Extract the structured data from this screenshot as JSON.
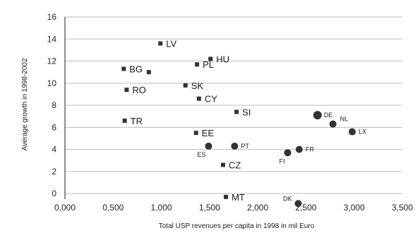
{
  "chart_data": {
    "type": "scatter",
    "xlabel": "Total USP revenues per capita in 1998 in mil Euro",
    "ylabel": "Average growth in 1998-2002",
    "xlim": [
      0,
      3.5
    ],
    "ylim": [
      -0.5,
      16
    ],
    "grid": "horizontal",
    "x_ticks": [
      0,
      0.5,
      1,
      1.5,
      2,
      2.5,
      3,
      3.5
    ],
    "x_tick_labels": [
      "0,000",
      "0,500",
      "1,000",
      "1,500",
      "2,000",
      "2,500",
      "3,000",
      "3,500"
    ],
    "y_ticks": [
      0,
      2,
      4,
      6,
      8,
      10,
      12,
      14,
      16
    ],
    "y_tick_labels": [
      "0",
      "2",
      "4",
      "6",
      "8",
      "10",
      "12",
      "14",
      "16"
    ],
    "points": [
      {
        "label": "LV",
        "x": 0.99,
        "y": 13.6,
        "marker": "square",
        "label_pos": "right"
      },
      {
        "label": "HU",
        "x": 1.51,
        "y": 12.2,
        "marker": "square",
        "label_pos": "right"
      },
      {
        "label": "PL",
        "x": 1.37,
        "y": 11.7,
        "marker": "square",
        "label_pos": "right"
      },
      {
        "label": "BG",
        "x": 0.61,
        "y": 11.3,
        "marker": "square",
        "label_pos": "right"
      },
      {
        "label": "",
        "x": 0.87,
        "y": 11.0,
        "marker": "square",
        "label_pos": "none"
      },
      {
        "label": "SK",
        "x": 1.25,
        "y": 9.8,
        "marker": "square",
        "label_pos": "right"
      },
      {
        "label": "RO",
        "x": 0.64,
        "y": 9.4,
        "marker": "square",
        "label_pos": "right"
      },
      {
        "label": "CY",
        "x": 1.39,
        "y": 8.6,
        "marker": "square",
        "label_pos": "right"
      },
      {
        "label": "SI",
        "x": 1.78,
        "y": 7.4,
        "marker": "square",
        "label_pos": "right"
      },
      {
        "label": "TR",
        "x": 0.62,
        "y": 6.6,
        "marker": "square",
        "label_pos": "right"
      },
      {
        "label": "EE",
        "x": 1.36,
        "y": 5.5,
        "marker": "square",
        "label_pos": "right"
      },
      {
        "label": "CZ",
        "x": 1.64,
        "y": 2.6,
        "marker": "square",
        "label_pos": "right"
      },
      {
        "label": "MT",
        "x": 1.67,
        "y": -0.3,
        "marker": "square",
        "label_pos": "right"
      },
      {
        "label": "DE",
        "x": 2.62,
        "y": 7.1,
        "marker": "circle",
        "label_pos": "right"
      },
      {
        "label": "NL",
        "x": 2.78,
        "y": 6.3,
        "marker": "circle",
        "label_pos": "upper-right"
      },
      {
        "label": "LX",
        "x": 2.98,
        "y": 5.6,
        "marker": "circle",
        "label_pos": "right"
      },
      {
        "label": "FR",
        "x": 2.43,
        "y": 4.0,
        "marker": "circle",
        "label_pos": "right"
      },
      {
        "label": "FI",
        "x": 2.31,
        "y": 3.7,
        "marker": "circle",
        "label_pos": "lower-left"
      },
      {
        "label": "PT",
        "x": 1.76,
        "y": 4.3,
        "marker": "circle",
        "label_pos": "right"
      },
      {
        "label": "ES",
        "x": 1.49,
        "y": 4.3,
        "marker": "circle",
        "label_pos": "lower-left"
      },
      {
        "label": "DK",
        "x": 2.42,
        "y": -0.9,
        "marker": "circle",
        "label_pos": "upper-left"
      }
    ],
    "colors": {
      "marker": "#333333",
      "gridline": "#bdbdbd",
      "axis": "#222222"
    }
  }
}
